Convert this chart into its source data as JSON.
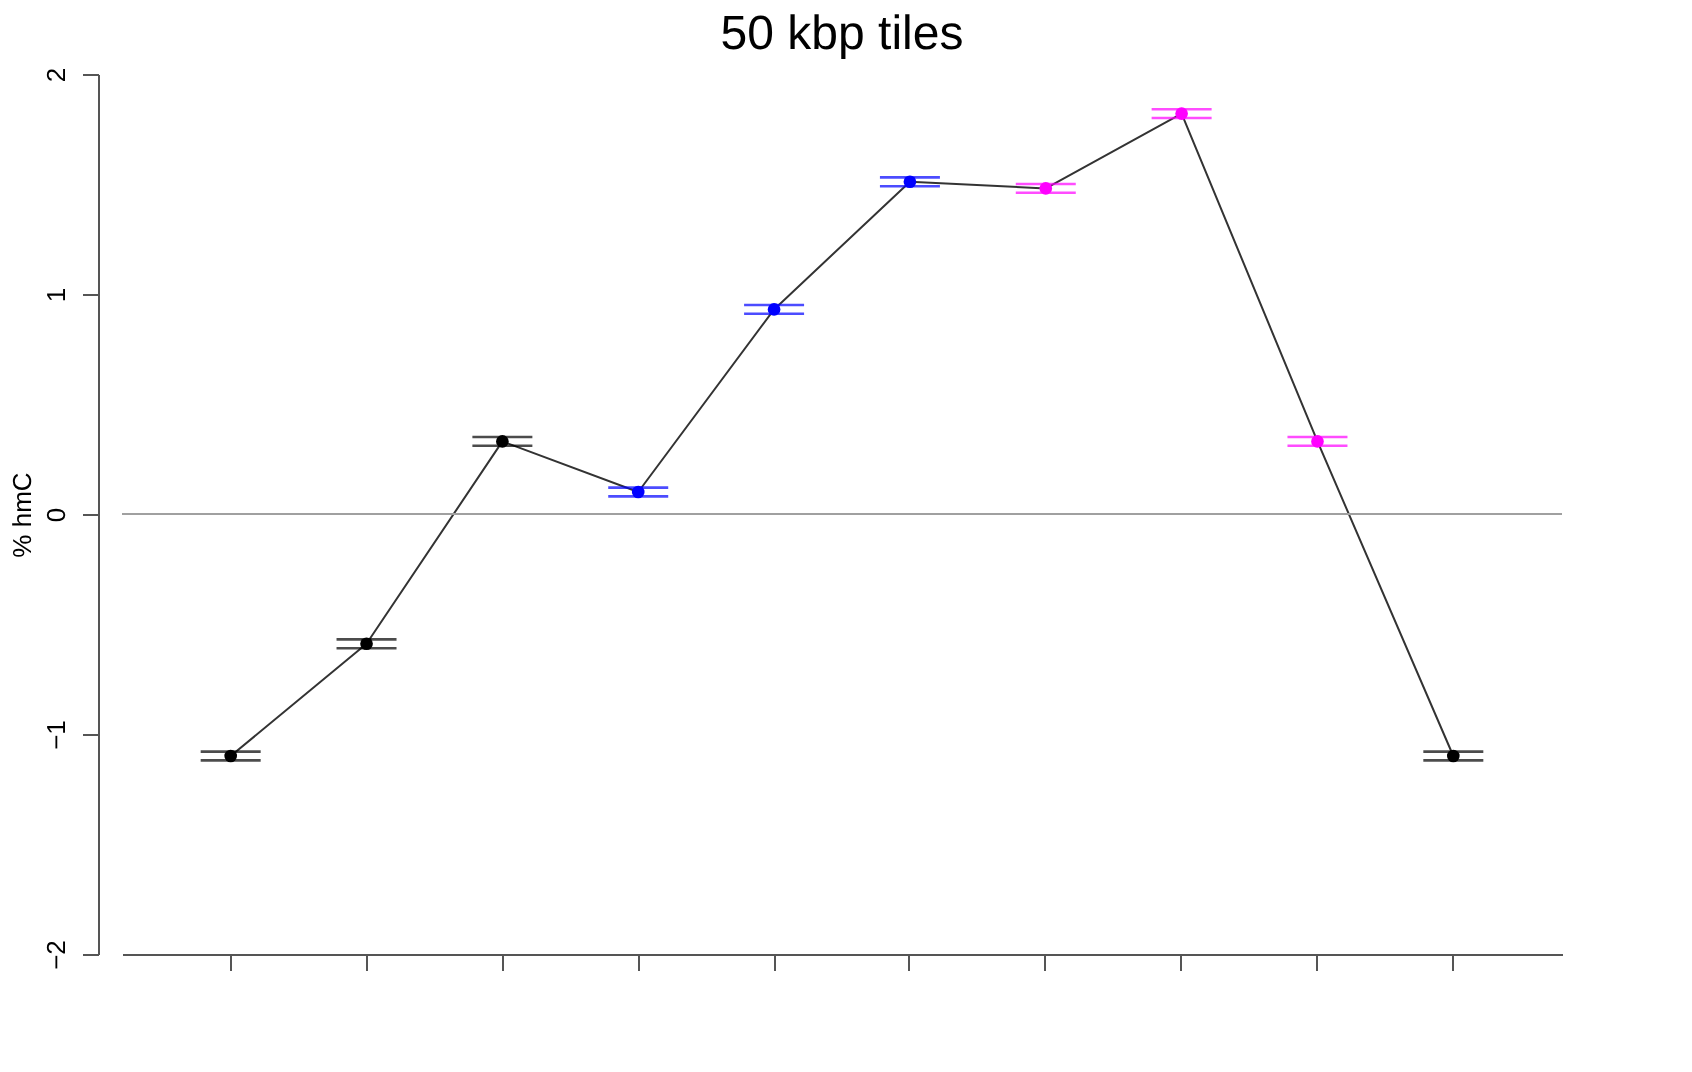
{
  "chart_data": {
    "type": "line",
    "title": "50 kbp tiles",
    "ylabel": "% hmC",
    "categories": [
      null,
      null,
      null,
      null,
      null,
      null,
      null,
      null,
      null,
      null
    ],
    "series": [
      {
        "color": "#333333",
        "colors": [
          "#000000",
          "#000000",
          "#000000",
          "#0000ff",
          "#0000ff",
          "#0000ff",
          "#ff00ff",
          "#ff00ff",
          "#ff00ff",
          "#000000"
        ],
        "values": [
          -1.1,
          -0.59,
          0.33,
          0.1,
          0.93,
          1.51,
          1.48,
          1.82,
          0.33,
          -1.1
        ],
        "errors": [
          0.02,
          0.02,
          0.02,
          0.02,
          0.02,
          0.02,
          0.02,
          0.02,
          0.02,
          0.02
        ]
      }
    ],
    "ylim": [
      -2,
      2
    ],
    "yticks": [
      -2,
      -1,
      0,
      1,
      2
    ],
    "marker": "circle",
    "line_style": "solid",
    "grid": false,
    "tick_labels": "y",
    "ref_lines": [
      {
        "axis": "y",
        "value": 0,
        "color": "#a0a0a0"
      }
    ]
  }
}
